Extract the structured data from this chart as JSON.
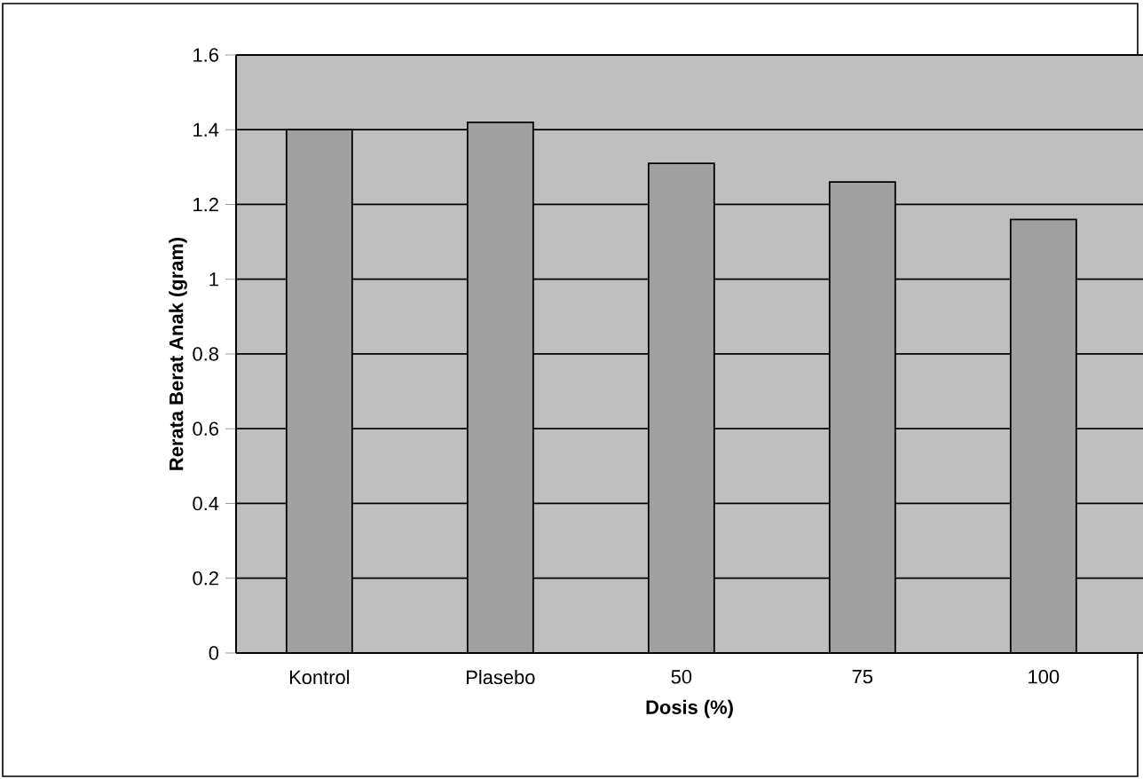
{
  "chart_data": {
    "type": "bar",
    "xlabel": "Dosis (%)",
    "ylabel": "Rerata Berat Anak (gram)",
    "categories": [
      "Kontrol",
      "Plasebo",
      "50",
      "75",
      "100"
    ],
    "values": [
      1.4,
      1.42,
      1.31,
      1.26,
      1.16
    ],
    "color": "#a0a0a0",
    "ylim": [
      0,
      1.6
    ],
    "yticks": [
      0,
      {
        "value": 0.2,
        "label": "0.2"
      },
      {
        "value": 0.4,
        "label": "0.4"
      },
      {
        "value": 0.6,
        "label": "0.6"
      },
      {
        "value": 0.8,
        "label": "0.8"
      },
      1,
      {
        "value": 1.2,
        "label": "1.2"
      },
      {
        "value": 1.4,
        "label": "1.4"
      },
      {
        "value": 1.6,
        "label": "1.6"
      }
    ],
    "grid": "y"
  }
}
